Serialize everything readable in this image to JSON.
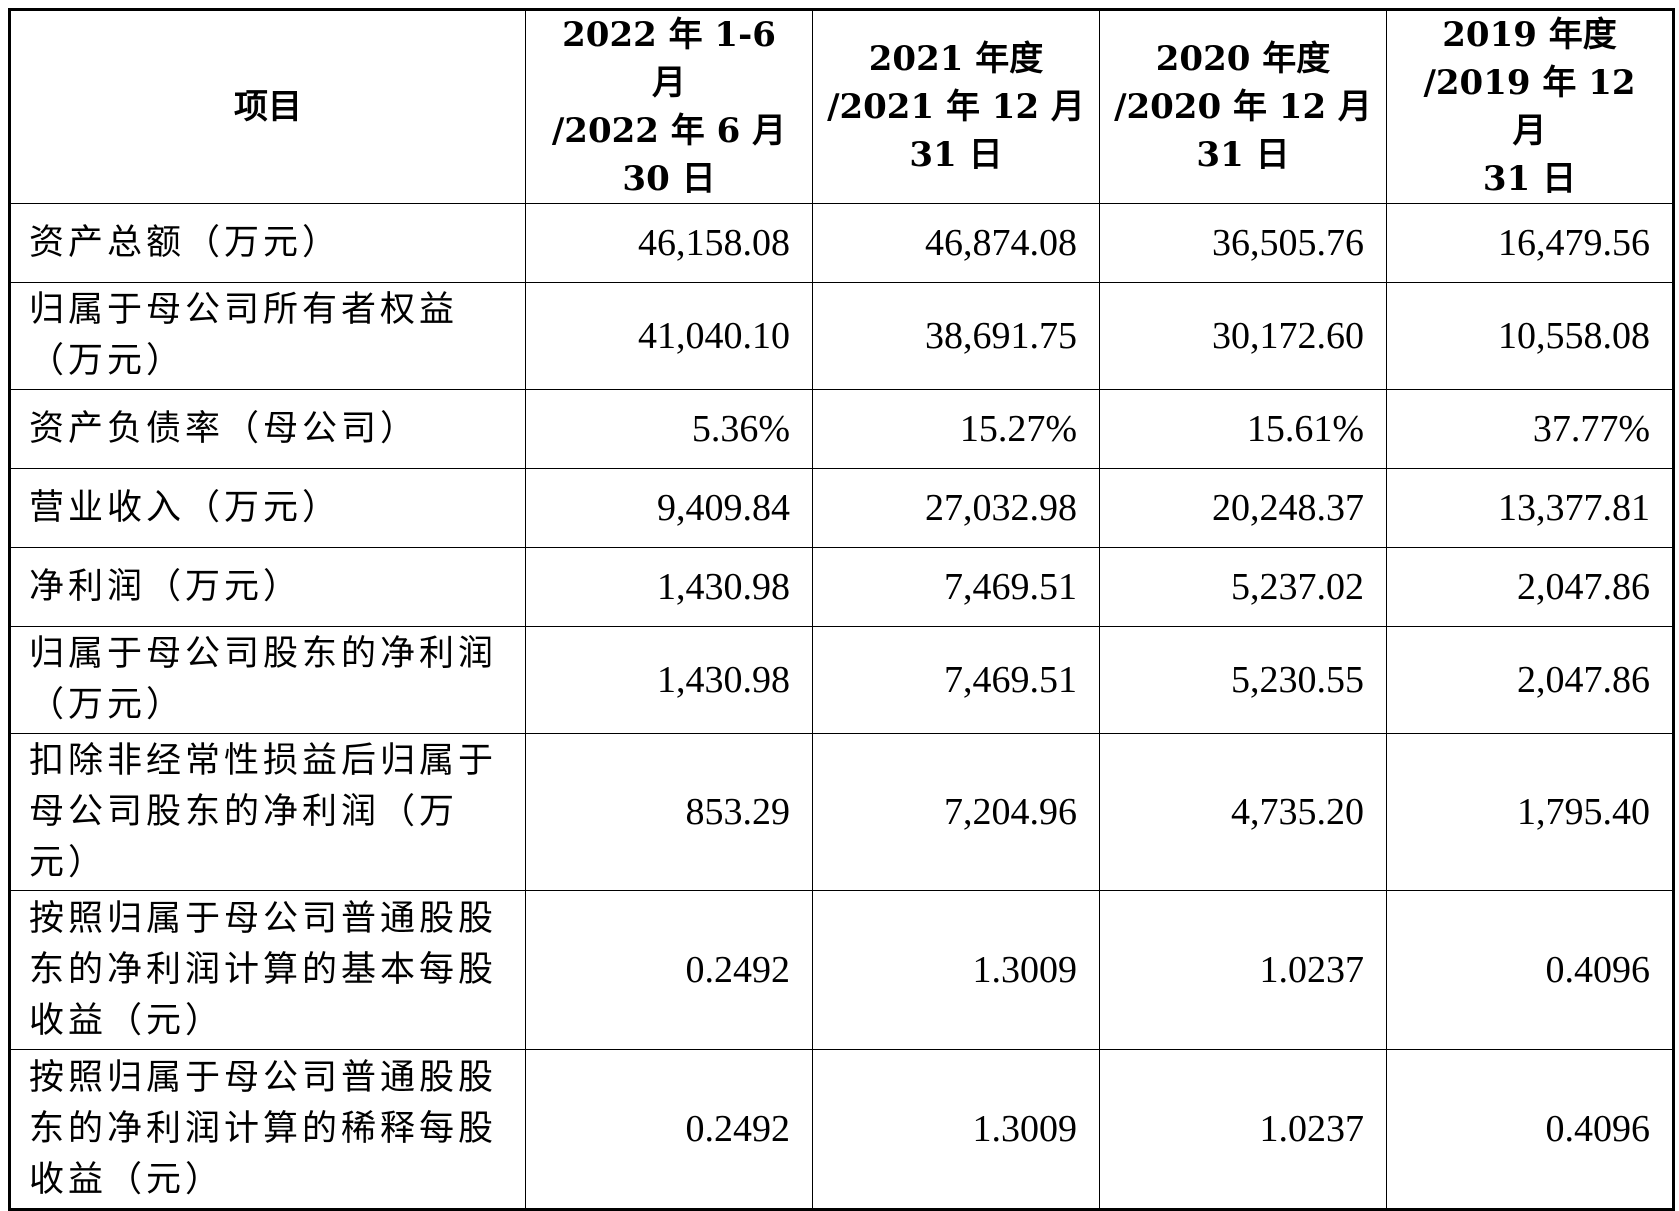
{
  "table": {
    "headers": [
      {
        "lines": [
          "项目"
        ]
      },
      {
        "lines": [
          "2022 年 1-6 月",
          "/2022 年 6 月",
          "30 日"
        ]
      },
      {
        "lines": [
          "2021 年度",
          "/2021 年 12 月",
          "31 日"
        ]
      },
      {
        "lines": [
          "2020 年度",
          "/2020 年 12 月",
          "31 日"
        ]
      },
      {
        "lines": [
          "2019 年度",
          "/2019 年 12 月",
          "31 日"
        ]
      }
    ],
    "rows": [
      {
        "label": "资产总额（万元）",
        "values": [
          "46,158.08",
          "46,874.08",
          "36,505.76",
          "16,479.56"
        ]
      },
      {
        "label": "归属于母公司所有者权益（万元）",
        "values": [
          "41,040.10",
          "38,691.75",
          "30,172.60",
          "10,558.08"
        ]
      },
      {
        "label": "资产负债率（母公司）",
        "values": [
          "5.36%",
          "15.27%",
          "15.61%",
          "37.77%"
        ]
      },
      {
        "label": "营业收入（万元）",
        "values": [
          "9,409.84",
          "27,032.98",
          "20,248.37",
          "13,377.81"
        ]
      },
      {
        "label": "净利润（万元）",
        "values": [
          "1,430.98",
          "7,469.51",
          "5,237.02",
          "2,047.86"
        ]
      },
      {
        "label": "归属于母公司股东的净利润（万元）",
        "values": [
          "1,430.98",
          "7,469.51",
          "5,230.55",
          "2,047.86"
        ]
      },
      {
        "label": "扣除非经常性损益后归属于母公司股东的净利润（万元）",
        "values": [
          "853.29",
          "7,204.96",
          "4,735.20",
          "1,795.40"
        ]
      },
      {
        "label": "按照归属于母公司普通股股东的净利润计算的基本每股收益（元）",
        "values": [
          "0.2492",
          "1.3009",
          "1.0237",
          "0.4096"
        ]
      },
      {
        "label": "按照归属于母公司普通股股东的净利润计算的稀释每股收益（元）",
        "values": [
          "0.2492",
          "1.3009",
          "1.0237",
          "0.4096"
        ]
      }
    ]
  }
}
